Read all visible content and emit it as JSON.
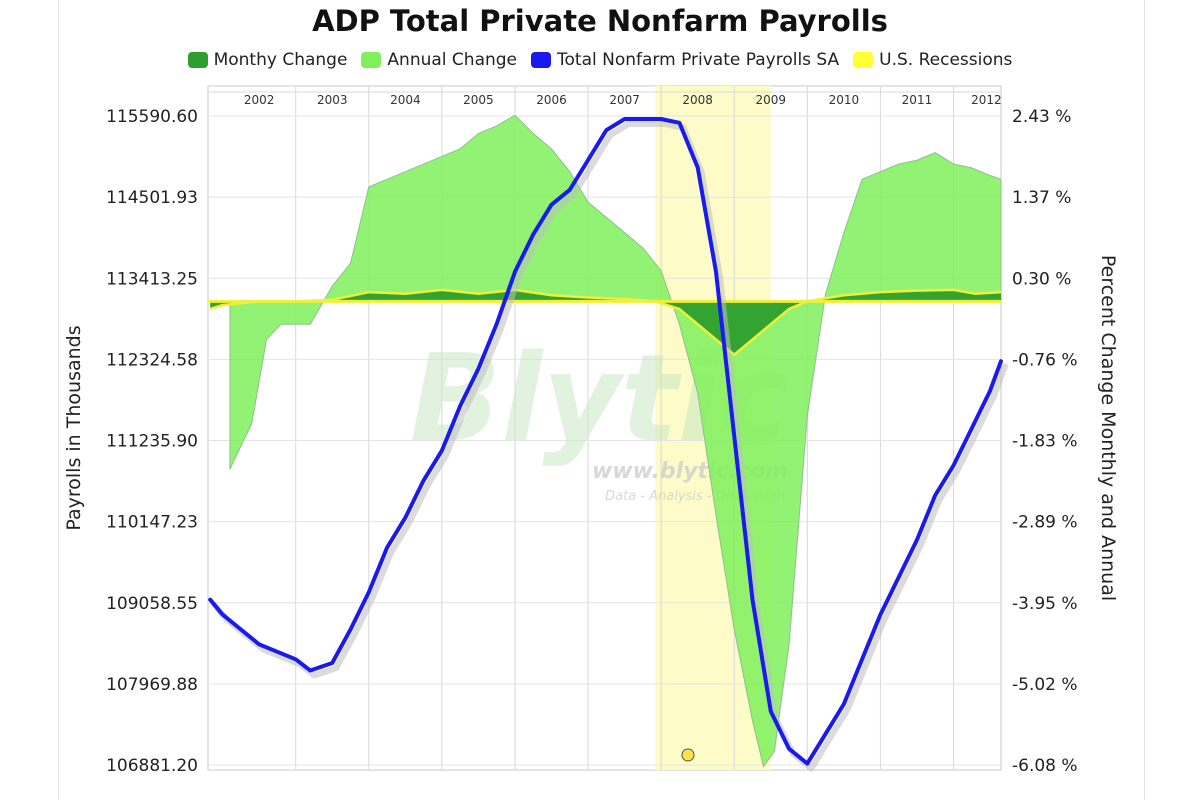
{
  "chart_data": {
    "type": "area",
    "title": "ADP Total Private Nonfarm Payrolls",
    "ylabel_left": "Payrolls in Thousands",
    "ylabel_right": "Percent Change Monthly and Annual",
    "x_ticks": [
      "2002",
      "2003",
      "2004",
      "2005",
      "2006",
      "2007",
      "2008",
      "2009",
      "2010",
      "2011",
      "2012"
    ],
    "xlim": [
      2001.8,
      2012.65
    ],
    "y_left_ticks": [
      "115590.60",
      "114501.93",
      "113413.25",
      "112324.58",
      "111235.90",
      "110147.23",
      "109058.55",
      "107969.88",
      "106881.20"
    ],
    "ylim_left": [
      106881.2,
      115590.6
    ],
    "y_right_ticks": [
      "2.43 %",
      "1.37 %",
      "0.30 %",
      "-0.76 %",
      "-1.83 %",
      "-2.89 %",
      "-3.95 %",
      "-5.02 %",
      "-6.08 %"
    ],
    "ylim_right": [
      -6.08,
      2.43
    ],
    "grid": true,
    "legend_position": "top-center",
    "legend": [
      {
        "name": "Monthy Change",
        "color": "#2e9e2e"
      },
      {
        "name": "Annual Change",
        "color": "#7ff05a"
      },
      {
        "name": "Total Nonfarm Private Payrolls SA",
        "color": "#1a1aee"
      },
      {
        "name": "U.S. Recessions",
        "color": "#ffff33"
      }
    ],
    "recession": {
      "name": "U.S. Recessions",
      "start": 2007.92,
      "end": 2009.5,
      "color": "#fdfbc8"
    },
    "series": [
      {
        "name": "Total Nonfarm Private Payrolls SA",
        "axis": "left",
        "color": "#1a1aee",
        "points": [
          [
            2001.83,
            109100
          ],
          [
            2002.0,
            108900
          ],
          [
            2002.25,
            108700
          ],
          [
            2002.5,
            108500
          ],
          [
            2002.75,
            108400
          ],
          [
            2003.0,
            108300
          ],
          [
            2003.2,
            108150
          ],
          [
            2003.5,
            108250
          ],
          [
            2003.75,
            108700
          ],
          [
            2004.0,
            109200
          ],
          [
            2004.25,
            109800
          ],
          [
            2004.5,
            110200
          ],
          [
            2004.75,
            110700
          ],
          [
            2005.0,
            111100
          ],
          [
            2005.25,
            111700
          ],
          [
            2005.5,
            112200
          ],
          [
            2005.75,
            112800
          ],
          [
            2006.0,
            113500
          ],
          [
            2006.25,
            114000
          ],
          [
            2006.5,
            114400
          ],
          [
            2006.75,
            114600
          ],
          [
            2007.0,
            115000
          ],
          [
            2007.25,
            115400
          ],
          [
            2007.5,
            115550
          ],
          [
            2007.75,
            115550
          ],
          [
            2008.0,
            115550
          ],
          [
            2008.25,
            115500
          ],
          [
            2008.5,
            114900
          ],
          [
            2008.75,
            113500
          ],
          [
            2009.0,
            111300
          ],
          [
            2009.25,
            109100
          ],
          [
            2009.5,
            107600
          ],
          [
            2009.75,
            107100
          ],
          [
            2010.0,
            106900
          ],
          [
            2010.25,
            107300
          ],
          [
            2010.5,
            107700
          ],
          [
            2010.75,
            108300
          ],
          [
            2011.0,
            108900
          ],
          [
            2011.25,
            109400
          ],
          [
            2011.5,
            109900
          ],
          [
            2011.75,
            110500
          ],
          [
            2012.0,
            110900
          ],
          [
            2012.25,
            111400
          ],
          [
            2012.5,
            111900
          ],
          [
            2012.65,
            112300
          ]
        ]
      },
      {
        "name": "Annual Change",
        "axis": "right",
        "color": "#7ff05a",
        "points": [
          [
            2002.1,
            -1.0
          ],
          [
            2002.1,
            -2.2
          ],
          [
            2002.4,
            -1.6
          ],
          [
            2002.6,
            -0.5
          ],
          [
            2002.8,
            -0.3
          ],
          [
            2003.2,
            -0.3
          ],
          [
            2003.5,
            0.2
          ],
          [
            2003.75,
            0.5
          ],
          [
            2004.0,
            1.5
          ],
          [
            2004.25,
            1.6
          ],
          [
            2004.5,
            1.7
          ],
          [
            2004.75,
            1.8
          ],
          [
            2005.0,
            1.9
          ],
          [
            2005.25,
            2.0
          ],
          [
            2005.5,
            2.2
          ],
          [
            2005.75,
            2.3
          ],
          [
            2006.0,
            2.44
          ],
          [
            2006.25,
            2.2
          ],
          [
            2006.5,
            2.0
          ],
          [
            2006.75,
            1.7
          ],
          [
            2007.0,
            1.3
          ],
          [
            2007.25,
            1.1
          ],
          [
            2007.5,
            0.9
          ],
          [
            2007.75,
            0.7
          ],
          [
            2008.0,
            0.4
          ],
          [
            2008.25,
            -0.3
          ],
          [
            2008.5,
            -1.2
          ],
          [
            2008.75,
            -2.8
          ],
          [
            2009.0,
            -4.3
          ],
          [
            2009.25,
            -5.5
          ],
          [
            2009.4,
            -6.1
          ],
          [
            2009.55,
            -5.9
          ],
          [
            2009.75,
            -4.5
          ],
          [
            2010.0,
            -1.5
          ],
          [
            2010.25,
            0.1
          ],
          [
            2010.5,
            0.9
          ],
          [
            2010.75,
            1.6
          ],
          [
            2011.0,
            1.7
          ],
          [
            2011.25,
            1.8
          ],
          [
            2011.5,
            1.85
          ],
          [
            2011.75,
            1.95
          ],
          [
            2012.0,
            1.8
          ],
          [
            2012.25,
            1.75
          ],
          [
            2012.5,
            1.65
          ],
          [
            2012.65,
            1.6
          ]
        ]
      },
      {
        "name": "Monthy Change",
        "axis": "right",
        "color": "#2e9e2e",
        "points": [
          [
            2001.83,
            -0.1
          ],
          [
            2002.0,
            -0.05
          ],
          [
            2002.5,
            0.0
          ],
          [
            2003.0,
            0.0
          ],
          [
            2003.5,
            0.02
          ],
          [
            2004.0,
            0.12
          ],
          [
            2004.5,
            0.1
          ],
          [
            2005.0,
            0.15
          ],
          [
            2005.5,
            0.1
          ],
          [
            2006.0,
            0.15
          ],
          [
            2006.5,
            0.08
          ],
          [
            2007.0,
            0.05
          ],
          [
            2007.5,
            0.03
          ],
          [
            2007.92,
            0.0
          ],
          [
            2008.25,
            -0.1
          ],
          [
            2008.5,
            -0.3
          ],
          [
            2008.75,
            -0.5
          ],
          [
            2009.0,
            -0.7
          ],
          [
            2009.25,
            -0.5
          ],
          [
            2009.5,
            -0.3
          ],
          [
            2009.75,
            -0.1
          ],
          [
            2010.0,
            0.0
          ],
          [
            2010.5,
            0.08
          ],
          [
            2011.0,
            0.12
          ],
          [
            2011.5,
            0.14
          ],
          [
            2012.0,
            0.15
          ],
          [
            2012.3,
            0.1
          ],
          [
            2012.65,
            0.12
          ]
        ]
      }
    ],
    "annotations": [
      "Blytic",
      "www.blytic.com",
      "Data - Analysis - Discussion"
    ]
  }
}
